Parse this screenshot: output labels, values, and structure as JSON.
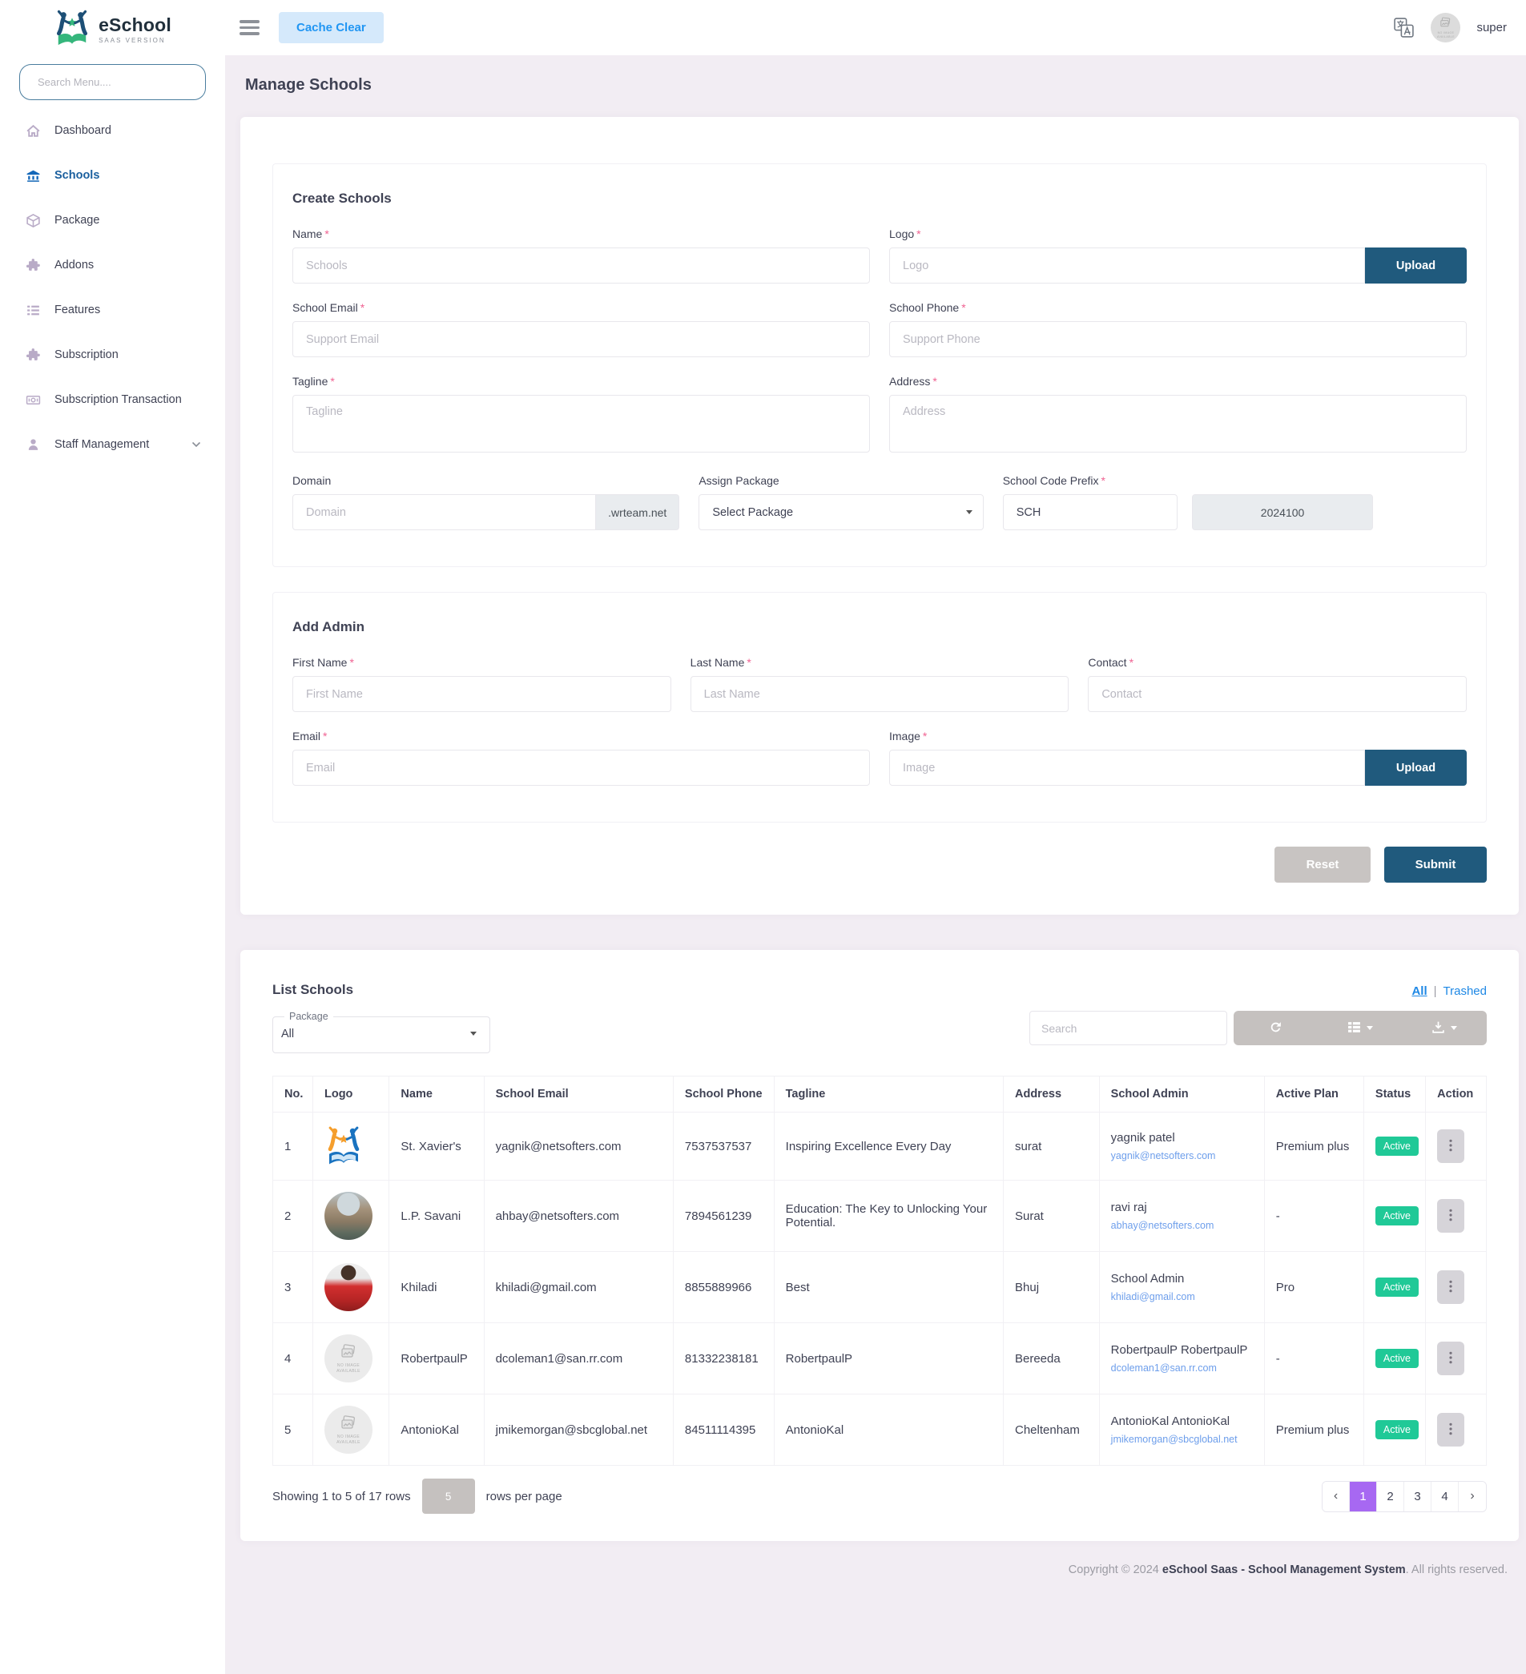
{
  "brand": {
    "name": "eSchool",
    "sub": "SAAS VERSION"
  },
  "topbar": {
    "cache_clear": "Cache Clear",
    "username": "super"
  },
  "sidebar": {
    "search_placeholder": "Search Menu....",
    "items": [
      {
        "label": "Dashboard",
        "icon": "home",
        "active": false
      },
      {
        "label": "Schools",
        "icon": "bank",
        "active": true
      },
      {
        "label": "Package",
        "icon": "cube",
        "active": false
      },
      {
        "label": "Addons",
        "icon": "puzzle",
        "active": false
      },
      {
        "label": "Features",
        "icon": "list",
        "active": false
      },
      {
        "label": "Subscription",
        "icon": "puzzle",
        "active": false
      },
      {
        "label": "Subscription Transaction",
        "icon": "money",
        "active": false
      },
      {
        "label": "Staff Management",
        "icon": "person",
        "active": false,
        "chevron": true
      }
    ]
  },
  "page": {
    "title": "Manage Schools"
  },
  "misc": {
    "required_marker": "*",
    "no_image_text": "NO IMAGE AVAILABLE"
  },
  "create": {
    "title": "Create Schools",
    "fields": {
      "name": {
        "label": "Name",
        "placeholder": "Schools"
      },
      "logo": {
        "label": "Logo",
        "placeholder": "Logo"
      },
      "school_email": {
        "label": "School Email",
        "placeholder": "Support Email"
      },
      "school_phone": {
        "label": "School Phone",
        "placeholder": "Support Phone"
      },
      "tagline": {
        "label": "Tagline",
        "placeholder": "Tagline"
      },
      "address": {
        "label": "Address",
        "placeholder": "Address"
      },
      "domain": {
        "label": "Domain",
        "placeholder": "Domain",
        "suffix": ".wrteam.net"
      },
      "assign_package": {
        "label": "Assign Package",
        "value": "Select Package"
      },
      "school_code_prefix": {
        "label": "School Code Prefix",
        "value": "SCH",
        "code": "2024100"
      }
    }
  },
  "admin": {
    "title": "Add Admin",
    "fields": {
      "first_name": {
        "label": "First Name",
        "placeholder": "First Name"
      },
      "last_name": {
        "label": "Last Name",
        "placeholder": "Last Name"
      },
      "contact": {
        "label": "Contact",
        "placeholder": "Contact"
      },
      "email": {
        "label": "Email",
        "placeholder": "Email"
      },
      "image": {
        "label": "Image",
        "placeholder": "Image"
      }
    }
  },
  "actions": {
    "reset": "Reset",
    "submit": "Submit",
    "upload": "Upload"
  },
  "list": {
    "title": "List Schools",
    "filter_all": "All",
    "filter_separator": "|",
    "filter_trashed": "Trashed",
    "package_legend": "Package",
    "package_value": "All",
    "search_placeholder": "Search",
    "toolbar": [
      {
        "icon": "refresh",
        "caret": false
      },
      {
        "icon": "columns",
        "caret": true
      },
      {
        "icon": "download",
        "caret": true
      }
    ],
    "columns": [
      "No.",
      "Logo",
      "Name",
      "School Email",
      "School Phone",
      "Tagline",
      "Address",
      "School Admin",
      "Active Plan",
      "Status",
      "Action"
    ],
    "rows": [
      {
        "no": "1",
        "logo": "emblem",
        "name": "St. Xavier's",
        "email": "yagnik@netsofters.com",
        "phone": "7537537537",
        "tagline": "Inspiring Excellence Every Day",
        "address": "surat",
        "admin_name": "yagnik patel",
        "admin_email": "yagnik@netsofters.com",
        "plan": "Premium plus",
        "status": "Active"
      },
      {
        "no": "2",
        "logo": "photo-building",
        "name": "L.P. Savani",
        "email": "ahbay@netsofters.com",
        "phone": "7894561239",
        "tagline": "Education: The Key to Unlocking Your Potential.",
        "address": "Surat",
        "admin_name": "ravi raj",
        "admin_email": "abhay@netsofters.com",
        "plan": "-",
        "status": "Active"
      },
      {
        "no": "3",
        "logo": "photo-person",
        "name": "Khiladi",
        "email": "khiladi@gmail.com",
        "phone": "8855889966",
        "tagline": "Best",
        "address": "Bhuj",
        "admin_name": "School Admin",
        "admin_email": "khiladi@gmail.com",
        "plan": "Pro",
        "status": "Active"
      },
      {
        "no": "4",
        "logo": "no-image",
        "name": "RobertpaulP",
        "email": "dcoleman1@san.rr.com",
        "phone": "81332238181",
        "tagline": "RobertpaulP",
        "address": "Bereeda",
        "admin_name": "RobertpaulP RobertpaulP",
        "admin_email": "dcoleman1@san.rr.com",
        "plan": "-",
        "status": "Active"
      },
      {
        "no": "5",
        "logo": "no-image",
        "name": "AntonioKal",
        "email": "jmikemorgan@sbcglobal.net",
        "phone": "84511114395",
        "tagline": "AntonioKal",
        "address": "Cheltenham",
        "admin_name": "AntonioKal AntonioKal",
        "admin_email": "jmikemorgan@sbcglobal.net",
        "plan": "Premium plus",
        "status": "Active"
      }
    ],
    "footer": {
      "showing": "Showing 1 to 5 of 17 rows",
      "per_page": "5",
      "per_page_label": "rows per page",
      "prev": "‹",
      "next": "›",
      "pages": [
        "1",
        "2",
        "3",
        "4"
      ],
      "active_page": "1"
    }
  },
  "footer": {
    "prefix": "Copyright © 2024 ",
    "brand": "eSchool Saas - School Management System",
    "suffix": ". All rights reserved."
  },
  "colors": {
    "accent_blue": "#2196f3",
    "dark_blue": "#205a7d",
    "active_badge": "#20c997",
    "pagination_active": "#a768f2",
    "content_bg": "#f2edf3"
  }
}
